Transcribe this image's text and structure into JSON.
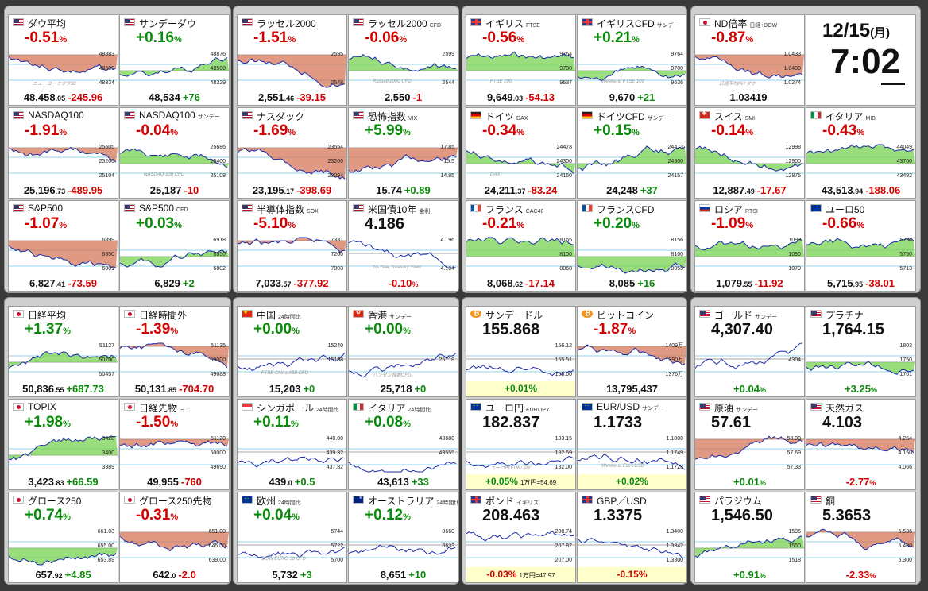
{
  "date": {
    "md": "12/15",
    "dow": "(月)"
  },
  "time": "7:02",
  "cards": [
    {
      "name": "ダウ平均",
      "sub": "",
      "flag": "us",
      "pct": "-0.51",
      "dir": "dn",
      "price": "48,458",
      "dec": ".05",
      "change": "-245.96",
      "ticks": [
        "48883",
        "48500",
        "48334"
      ],
      "wm": "ニューヨークダウ30",
      "fill": "dn"
    },
    {
      "name": "サンデーダウ",
      "sub": "",
      "flag": "us",
      "pct": "+0.16",
      "dir": "up",
      "price": "48,534",
      "dec": "",
      "change": "+76",
      "ticks": [
        "48876",
        "48500",
        "48329"
      ],
      "wm": "",
      "fill": "up"
    },
    {
      "name": "ラッセル2000",
      "sub": "",
      "flag": "us",
      "pct": "-1.51",
      "dir": "dn",
      "price": "2,551",
      "dec": ".46",
      "change": "-39.15",
      "ticks": [
        "2595",
        "",
        "2548"
      ],
      "wm": "",
      "fill": "dn"
    },
    {
      "name": "ラッセル2000",
      "sub": "CFD",
      "flag": "us",
      "pct": "-0.06",
      "dir": "dn",
      "price": "2,550",
      "dec": "",
      "change": "-1",
      "ticks": [
        "2599",
        "",
        "2544"
      ],
      "wm": "Russell 2000 CFD",
      "fill": "up"
    },
    {
      "name": "イギリス",
      "sub": "FTSE",
      "flag": "uk",
      "pct": "-0.56",
      "dir": "dn",
      "price": "9,649",
      "dec": ".03",
      "change": "-54.13",
      "ticks": [
        "9764",
        "9700",
        "9637"
      ],
      "wm": "FTSE 100",
      "fill": "up"
    },
    {
      "name": "イギリスCFD",
      "sub": "サンデー",
      "flag": "uk",
      "pct": "+0.21",
      "dir": "up",
      "price": "9,670",
      "dec": "",
      "change": "+21",
      "ticks": [
        "9764",
        "9700",
        "9636"
      ],
      "wm": "Weekend FTSE 100",
      "fill": "up"
    },
    {
      "name": "ND倍率",
      "sub": "日経÷DOW",
      "flag": "jp",
      "pct": "-0.87",
      "dir": "dn",
      "price": "1.03419",
      "dec": "",
      "change": "",
      "ticks": [
        "1.0433",
        "1.0400",
        "1.0274"
      ],
      "wm": "日経平均/NYダウ",
      "fill": "dn"
    },
    {
      "name": "NASDAQ100",
      "sub": "",
      "flag": "us",
      "pct": "-1.91",
      "dir": "dn",
      "price": "25,196",
      "dec": ".73",
      "change": "-489.95",
      "ticks": [
        "25605",
        "25200",
        "25104"
      ],
      "wm": "",
      "fill": "dn"
    },
    {
      "name": "NASDAQ100",
      "sub": "サンデー",
      "flag": "us",
      "pct": "-0.04",
      "dir": "dn",
      "price": "25,187",
      "dec": "",
      "change": "-10",
      "ticks": [
        "25686",
        "25400",
        "25108"
      ],
      "wm": "NASDAQ 100 CFD",
      "fill": "up"
    },
    {
      "name": "ナスダック",
      "sub": "",
      "flag": "us",
      "pct": "-1.69",
      "dir": "dn",
      "price": "23,195",
      "dec": ".17",
      "change": "-398.69",
      "ticks": [
        "23554",
        "23200",
        "23094"
      ],
      "wm": "",
      "fill": "dn"
    },
    {
      "name": "恐怖指数",
      "sub": "VIX",
      "flag": "us",
      "pct": "+5.99",
      "dir": "up",
      "price": "15.74",
      "dec": "",
      "change": "+0.89",
      "ticks": [
        "17.85",
        "15.5",
        "14.85"
      ],
      "wm": "",
      "fill": "dn"
    },
    {
      "name": "ドイツ",
      "sub": "DAX",
      "flag": "de",
      "pct": "-0.34",
      "dir": "dn",
      "price": "24,211",
      "dec": ".37",
      "change": "-83.24",
      "ticks": [
        "24478",
        "24300",
        "24160"
      ],
      "wm": "DAX",
      "fill": "up"
    },
    {
      "name": "ドイツCFD",
      "sub": "サンデー",
      "flag": "de",
      "pct": "+0.15",
      "dir": "up",
      "price": "24,248",
      "dec": "",
      "change": "+37",
      "ticks": [
        "24473",
        "24300",
        "24157"
      ],
      "wm": "",
      "fill": "up"
    },
    {
      "name": "スイス",
      "sub": "SMI",
      "flag": "ch",
      "pct": "-0.14",
      "dir": "dn",
      "price": "12,887",
      "dec": ".49",
      "change": "-17.67",
      "ticks": [
        "12998",
        "12900",
        "12875"
      ],
      "wm": "",
      "fill": "up"
    },
    {
      "name": "イタリア",
      "sub": "MIB",
      "flag": "it",
      "pct": "-0.43",
      "dir": "dn",
      "price": "43,513",
      "dec": ".94",
      "change": "-188.06",
      "ticks": [
        "44049",
        "43700",
        "43492"
      ],
      "wm": "",
      "fill": "up"
    },
    {
      "name": "S&P500",
      "sub": "",
      "flag": "us",
      "pct": "-1.07",
      "dir": "dn",
      "price": "6,827",
      "dec": ".41",
      "change": "-73.59",
      "ticks": [
        "6899",
        "6850",
        "6801"
      ],
      "wm": "",
      "fill": "dn"
    },
    {
      "name": "S&P500",
      "sub": "CFD",
      "flag": "us",
      "pct": "+0.03",
      "dir": "up",
      "price": "6,829",
      "dec": "",
      "change": "+2",
      "ticks": [
        "6918",
        "6850",
        "6802"
      ],
      "wm": "",
      "fill": "up"
    },
    {
      "name": "半導体指数",
      "sub": "SOX",
      "flag": "us",
      "pct": "-5.10",
      "dir": "dn",
      "price": "7,033",
      "dec": ".57",
      "change": "-377.92",
      "ticks": [
        "7331",
        "7200",
        "7003"
      ],
      "wm": "",
      "fill": "dn"
    },
    {
      "name": "米国債10年",
      "sub": "金利",
      "flag": "us",
      "pct": "-0.10",
      "dir": "dn",
      "price": "",
      "dec": "",
      "change": "",
      "big": "4.186",
      "ticks": [
        "4.196",
        "",
        "4.184"
      ],
      "wm": "10-Year Treasury Yield",
      "fill": "none",
      "pctBottom": true
    },
    {
      "name": "フランス",
      "sub": "CAC40",
      "flag": "fr",
      "pct": "-0.21",
      "dir": "dn",
      "price": "8,068",
      "dec": ".62",
      "change": "-17.14",
      "ticks": [
        "8155",
        "8100",
        "8068"
      ],
      "wm": "",
      "fill": "up"
    },
    {
      "name": "フランスCFD",
      "sub": "",
      "flag": "fr",
      "pct": "+0.20",
      "dir": "up",
      "price": "8,085",
      "dec": "",
      "change": "+16",
      "ticks": [
        "8156",
        "8100",
        "8055"
      ],
      "wm": "",
      "fill": "up"
    },
    {
      "name": "ロシア",
      "sub": "RTSI",
      "flag": "ru",
      "pct": "-1.09",
      "dir": "dn",
      "price": "1,079",
      "dec": ".55",
      "change": "-11.92",
      "ticks": [
        "1099",
        "1090",
        "1079"
      ],
      "wm": "",
      "fill": "up"
    },
    {
      "name": "ユーロ50",
      "sub": "",
      "flag": "eu",
      "pct": "-0.66",
      "dir": "dn",
      "price": "5,715",
      "dec": ".95",
      "change": "-38.01",
      "ticks": [
        "5794",
        "5750",
        "5713"
      ],
      "wm": "",
      "fill": "up"
    },
    {
      "name": "日経平均",
      "sub": "",
      "flag": "jp",
      "pct": "+1.37",
      "dir": "up",
      "price": "50,836",
      "dec": ".55",
      "change": "+687.73",
      "ticks": [
        "51127",
        "50700",
        "50457"
      ],
      "wm": "",
      "fill": "up"
    },
    {
      "name": "日経時間外",
      "sub": "",
      "flag": "jp",
      "pct": "-1.39",
      "dir": "dn",
      "price": "50,131",
      "dec": ".85",
      "change": "-704.70",
      "ticks": [
        "51135",
        "50000",
        "49688"
      ],
      "wm": "",
      "fill": "dn"
    },
    {
      "name": "中国",
      "sub": "24時間比",
      "flag": "cn",
      "pct": "+0.00",
      "dir": "up",
      "price": "15,203",
      "dec": "",
      "change": "+0",
      "ticks": [
        "15240",
        "15198",
        ""
      ],
      "wm": "FTSE China A50 CFD",
      "fill": "none"
    },
    {
      "name": "香港",
      "sub": "サンデー",
      "flag": "hk",
      "pct": "+0.00",
      "dir": "up",
      "price": "25,718",
      "dec": "",
      "change": "+0",
      "ticks": [
        "",
        "25718",
        ""
      ],
      "wm": "ハンセン指数CFD",
      "fill": "none"
    },
    {
      "name": "サンデードル",
      "sub": "",
      "flag": "btc",
      "pct": "+0.01",
      "dir": "up",
      "price": "",
      "dec": "",
      "change": "",
      "big": "155.868",
      "ticks": [
        "156.12",
        "155.51",
        "155.00"
      ],
      "wm": "",
      "fill": "none",
      "gold": true
    },
    {
      "name": "ビットコイン",
      "sub": "",
      "flag": "btc",
      "pct": "-1.87",
      "dir": "dn",
      "price": "13,795,437",
      "dec": "",
      "change": "",
      "ticks": [
        "1409万",
        "1390万",
        "1376万"
      ],
      "wm": "",
      "fill": "dn",
      "btc": true
    },
    {
      "name": "ゴールド",
      "sub": "サンデー",
      "flag": "us",
      "pct": "+0.04",
      "dir": "up",
      "price": "",
      "dec": "",
      "change": "",
      "big": "4,307.40",
      "ticks": [
        "",
        "4304",
        ""
      ],
      "wm": "",
      "fill": "none",
      "pctBottom": true
    },
    {
      "name": "プラチナ",
      "sub": "",
      "flag": "us",
      "pct": "+3.25",
      "dir": "up",
      "price": "",
      "dec": "",
      "change": "",
      "big": "1,764.15",
      "ticks": [
        "1803",
        "1750",
        "1701"
      ],
      "wm": "",
      "fill": "up",
      "pctBottom": true
    },
    {
      "name": "TOPIX",
      "sub": "",
      "flag": "jp",
      "pct": "+1.98",
      "dir": "up",
      "price": "3,423",
      "dec": ".83",
      "change": "+66.59",
      "ticks": [
        "3428",
        "3400",
        "3389"
      ],
      "wm": "",
      "fill": "up"
    },
    {
      "name": "日経先物",
      "sub": "ミニ",
      "flag": "jp",
      "pct": "-1.50",
      "dir": "dn",
      "price": "49,955",
      "dec": "",
      "change": "-760",
      "ticks": [
        "51120",
        "50000",
        "49690"
      ],
      "wm": "",
      "fill": "dn"
    },
    {
      "name": "シンガポール",
      "sub": "24時間比",
      "flag": "sg",
      "pct": "+0.11",
      "dir": "up",
      "price": "439",
      "dec": ".0",
      "change": "+0.5",
      "ticks": [
        "440.00",
        "439.32",
        "437.82"
      ],
      "wm": "",
      "fill": "none"
    },
    {
      "name": "イタリア",
      "sub": "24時間比",
      "flag": "it",
      "pct": "+0.08",
      "dir": "up",
      "price": "43,613",
      "dec": "",
      "change": "+33",
      "ticks": [
        "43680",
        "43555",
        ""
      ],
      "wm": "",
      "fill": "none"
    },
    {
      "name": "ユーロ円",
      "sub": "EUR/JPY",
      "flag": "eu",
      "pct": "+0.05",
      "dir": "up",
      "price": "",
      "dec": "",
      "change": "",
      "big": "182.837",
      "ticks": [
        "183.15",
        "182.59",
        "182.00"
      ],
      "wm": "ユーロ円 EUR/JPY",
      "fill": "none",
      "gold": true,
      "note": "1万円=54.69"
    },
    {
      "name": "EUR/USD",
      "sub": "サンデー",
      "flag": "eu",
      "pct": "+0.02",
      "dir": "up",
      "price": "",
      "dec": "",
      "change": "",
      "big": "1.1733",
      "ticks": [
        "1.1800",
        "1.1749",
        "1.1723"
      ],
      "wm": "Weekend EUR/USD",
      "fill": "none",
      "gold": true
    },
    {
      "name": "原油",
      "sub": "サンデー",
      "flag": "us",
      "pct": "+0.01",
      "dir": "up",
      "price": "",
      "dec": "",
      "change": "",
      "big": "57.61",
      "ticks": [
        "58.00",
        "57.69",
        "57.33"
      ],
      "wm": "",
      "fill": "dn",
      "pctBottom": true
    },
    {
      "name": "天然ガス",
      "sub": "",
      "flag": "us",
      "pct": "-2.77",
      "dir": "dn",
      "price": "",
      "dec": "",
      "change": "",
      "big": "4.103",
      "ticks": [
        "4.254",
        "4.150",
        "4.066"
      ],
      "wm": "",
      "fill": "dn",
      "pctBottom": true
    },
    {
      "name": "グロース250",
      "sub": "",
      "flag": "jp",
      "pct": "+0.74",
      "dir": "up",
      "price": "657",
      "dec": ".92",
      "change": "+4.85",
      "ticks": [
        "661.03",
        "655.00",
        "653.89"
      ],
      "wm": "",
      "fill": "up"
    },
    {
      "name": "グロース250先物",
      "sub": "",
      "flag": "jp",
      "pct": "-0.31",
      "dir": "dn",
      "price": "642",
      "dec": ".0",
      "change": "-2.0",
      "ticks": [
        "651.00",
        "645.00",
        "639.00"
      ],
      "wm": "",
      "fill": "dn"
    },
    {
      "name": "欧州",
      "sub": "24時間比",
      "flag": "eu",
      "pct": "+0.04",
      "dir": "up",
      "price": "5,732",
      "dec": "",
      "change": "+3",
      "ticks": [
        "5744",
        "5722",
        "5700"
      ],
      "wm": "DOW EURO 50 CFD",
      "fill": "none"
    },
    {
      "name": "オーストラリア",
      "sub": "24時間比",
      "flag": "au",
      "pct": "+0.12",
      "dir": "up",
      "price": "8,651",
      "dec": "",
      "change": "+10",
      "ticks": [
        "8660",
        "8633",
        ""
      ],
      "wm": "",
      "fill": "none"
    },
    {
      "name": "ポンド",
      "sub": "イギリス",
      "flag": "uk",
      "pct": "-0.03",
      "dir": "dn",
      "price": "",
      "dec": "",
      "change": "",
      "big": "208.463",
      "ticks": [
        "208.74",
        "207.87",
        "207.00"
      ],
      "wm": "",
      "fill": "none",
      "gold": true,
      "note": "1万円=47.97"
    },
    {
      "name": "GBP／USD",
      "sub": "",
      "flag": "uk",
      "pct": "-0.15",
      "dir": "dn",
      "price": "",
      "dec": "",
      "change": "",
      "big": "1.3375",
      "ticks": [
        "1.3400",
        "1.3342",
        "1.3300"
      ],
      "wm": "",
      "fill": "none",
      "gold": true
    },
    {
      "name": "パラジウム",
      "sub": "",
      "flag": "us",
      "pct": "+0.91",
      "dir": "up",
      "price": "",
      "dec": "",
      "change": "",
      "big": "1,546.50",
      "ticks": [
        "1596",
        "1550",
        "1518"
      ],
      "wm": "",
      "fill": "up",
      "pctBottom": true
    },
    {
      "name": "銅",
      "sub": "",
      "flag": "us",
      "pct": "-2.33",
      "dir": "dn",
      "price": "",
      "dec": "",
      "change": "",
      "big": "5.3653",
      "ticks": [
        "5.536",
        "5.400",
        "5.300"
      ],
      "wm": "",
      "fill": "dn",
      "pctBottom": true
    }
  ]
}
